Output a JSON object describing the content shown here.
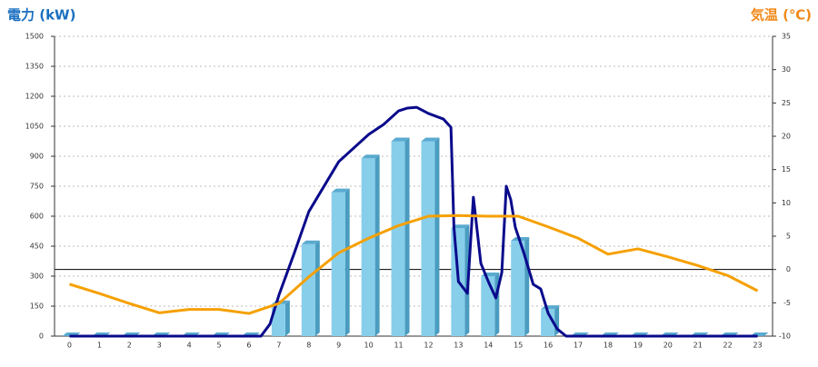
{
  "chart_data": {
    "type": "combo",
    "y_label": "電力 (kW)",
    "y2_label": "気温 (℃)",
    "categories": [
      "0",
      "1",
      "2",
      "3",
      "4",
      "5",
      "6",
      "7",
      "8",
      "9",
      "10",
      "11",
      "12",
      "13",
      "14",
      "15",
      "16",
      "17",
      "18",
      "19",
      "20",
      "21",
      "22",
      "23"
    ],
    "ylim": [
      0,
      1500
    ],
    "yticks": [
      0,
      150,
      300,
      450,
      600,
      750,
      900,
      1050,
      1200,
      1350,
      1500
    ],
    "y2lim": [
      -10,
      35
    ],
    "y2ticks": [
      -10,
      -5,
      0,
      5,
      10,
      15,
      20,
      25,
      30,
      35
    ],
    "grid": true,
    "y2_zero_line": true,
    "series": [
      {
        "type": "bar",
        "color": "#87ceeb",
        "values": [
          0,
          0,
          0,
          0,
          0,
          0,
          0,
          160,
          460,
          720,
          890,
          975,
          975,
          540,
          300,
          477,
          136,
          0,
          0,
          0,
          0,
          0,
          0,
          0
        ]
      },
      {
        "type": "line",
        "color": "#0a0a8c",
        "x": [
          0,
          6.4,
          6.7,
          7.0,
          7.5,
          8.0,
          9.0,
          10.0,
          10.5,
          11.0,
          11.3,
          11.6,
          12.0,
          12.5,
          12.75,
          12.85,
          13.0,
          13.3,
          13.5,
          13.75,
          14.0,
          14.25,
          14.45,
          14.6,
          14.75,
          14.9,
          15.2,
          15.5,
          15.75,
          16.0,
          16.3,
          16.6,
          23
        ],
        "values": [
          0,
          0,
          60,
          205,
          410,
          623,
          873,
          1009,
          1059,
          1127,
          1141,
          1145,
          1114,
          1086,
          1045,
          545,
          273,
          214,
          695,
          364,
          273,
          191,
          318,
          750,
          682,
          545,
          410,
          259,
          236,
          114,
          36,
          0,
          0
        ]
      },
      {
        "type": "line",
        "axis": "y2",
        "color": "#f5a000",
        "values": [
          -2.2,
          -3.6,
          -5.1,
          -6.5,
          -6,
          -6,
          -6.6,
          -5.1,
          -1.1,
          2.5,
          4.7,
          6.6,
          8,
          8.1,
          8,
          8,
          6.4,
          4.7,
          2.3,
          3.1,
          1.9,
          0.6,
          -0.9,
          -3.2
        ]
      }
    ]
  }
}
